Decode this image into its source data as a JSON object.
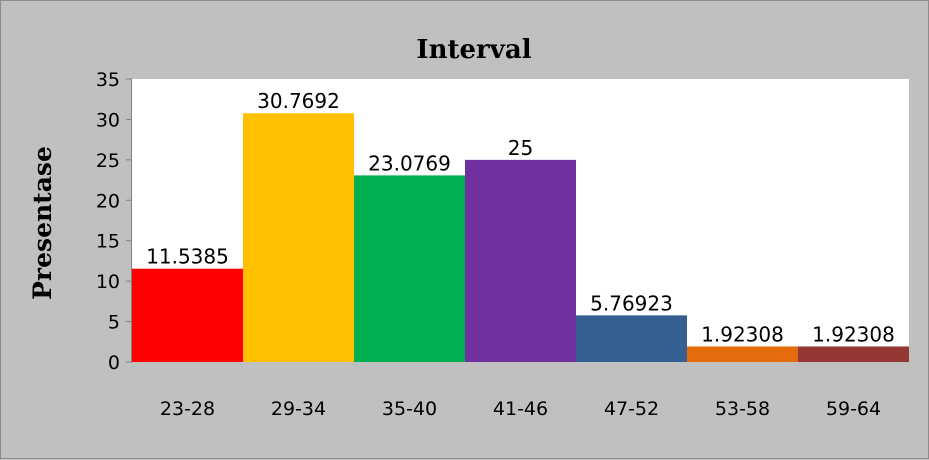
{
  "chart_data": {
    "type": "bar",
    "title": "Interval",
    "xlabel": "",
    "ylabel": "Presentase",
    "ylim": [
      0,
      35
    ],
    "yticks": [
      0,
      5,
      10,
      15,
      20,
      25,
      30,
      35
    ],
    "grid": false,
    "legend": "none",
    "categories": [
      "23-28",
      "29-34",
      "35-40",
      "41-46",
      "47-52",
      "53-58",
      "59-64"
    ],
    "values": [
      11.5385,
      30.7692,
      23.0769,
      25,
      5.76923,
      1.92308,
      1.92308
    ],
    "data_labels": [
      "11.5385",
      "30.7692",
      "23.0769",
      "25",
      "5.76923",
      "1.92308",
      "1.92308"
    ],
    "colors": [
      "#ff0000",
      "#ffc000",
      "#00b050",
      "#7030a0",
      "#366092",
      "#e46c0a",
      "#953735"
    ],
    "plot_background": "#ffffff",
    "chart_background": "#c0c0c0"
  }
}
